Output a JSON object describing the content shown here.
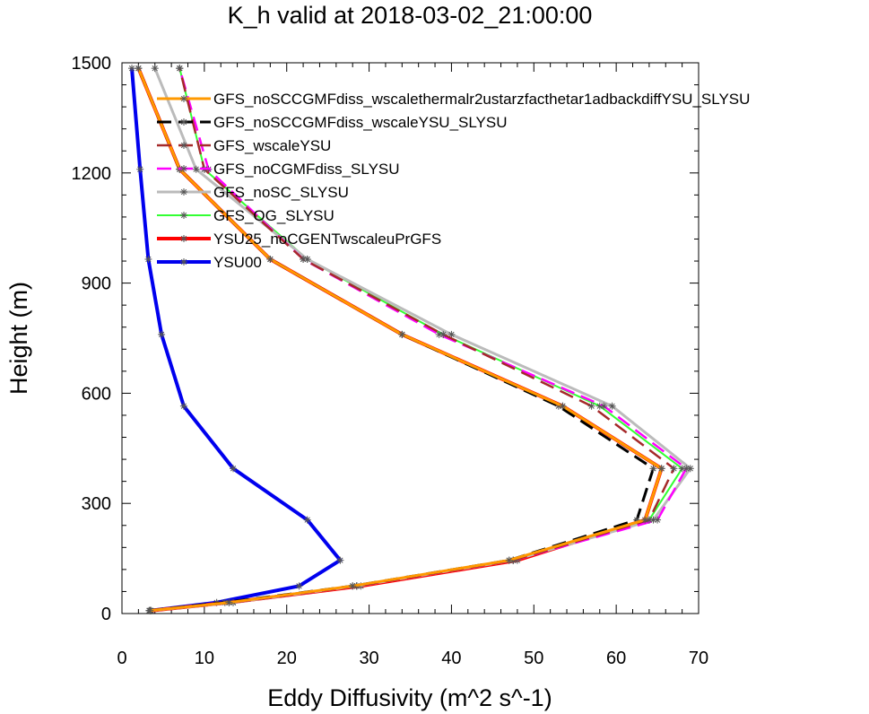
{
  "chart_data": {
    "type": "line",
    "title": "K_h valid at 2018-03-02_21:00:00",
    "xlabel": "Eddy Diffusivity (m^2 s^-1)",
    "ylabel": "Height (m)",
    "xlim": [
      0,
      70
    ],
    "ylim": [
      0,
      1500
    ],
    "xticks": [
      "0",
      "10",
      "20",
      "30",
      "40",
      "50",
      "60",
      "70"
    ],
    "yticks": [
      "0",
      "300",
      "600",
      "900",
      "1200",
      "1500"
    ],
    "heights": [
      8,
      30,
      75,
      145,
      255,
      395,
      565,
      760,
      965,
      1210,
      1485
    ],
    "legend_position": "top-right",
    "series": [
      {
        "name": "GFS_noSCCGMFdiss_wscalethermalr2ustarzfacthetar1adbackdiffYSU_SLYSU",
        "color": "#ff9900",
        "dash": "solid",
        "width": 3,
        "values": [
          3.4,
          13,
          28,
          47,
          63.5,
          65.5,
          53.5,
          34,
          18,
          7,
          2
        ]
      },
      {
        "name": "GFS_noSCCGMFdiss_wscaleYSU_SLYSU",
        "color": "#000000",
        "dash": "long",
        "width": 3,
        "values": [
          3.3,
          12.5,
          28,
          47,
          62.5,
          64.5,
          53,
          34,
          18,
          7,
          2
        ]
      },
      {
        "name": "GFS_wscaleYSU",
        "color": "#a52a2a",
        "dash": "long",
        "width": 2.5,
        "values": [
          3.5,
          13.5,
          28.5,
          47.5,
          64,
          67,
          57,
          39,
          22,
          10,
          7
        ]
      },
      {
        "name": "GFS_noCGMFdiss_SLYSU",
        "color": "#ff00ff",
        "dash": "long",
        "width": 2.5,
        "values": [
          3.5,
          13.5,
          28.5,
          47.5,
          65,
          68.5,
          58.5,
          38.5,
          22,
          10.5,
          7
        ]
      },
      {
        "name": "GFS_noSC_SLYSU",
        "color": "#bbbbbb",
        "dash": "solid",
        "width": 3,
        "values": [
          3.4,
          13.5,
          28.5,
          47.5,
          64.5,
          69,
          59.5,
          40,
          22.5,
          9,
          4
        ]
      },
      {
        "name": "GFS_OG_SLYSU",
        "color": "#33ff33",
        "dash": "solid",
        "width": 2,
        "values": [
          3.4,
          13,
          28.5,
          47.5,
          64,
          68,
          58,
          39,
          22.5,
          10,
          7
        ]
      },
      {
        "name": "YSU25_noCGENTwscaleuPrGFS",
        "color": "#ff0000",
        "dash": "solid",
        "width": 4,
        "values": [
          3.5,
          13,
          29,
          48,
          63.5,
          65.5,
          53.5,
          34,
          18,
          7,
          2
        ]
      },
      {
        "name": "YSU00",
        "color": "#0000ee",
        "dash": "solid",
        "width": 4,
        "values": [
          3.5,
          11.5,
          21.5,
          26.5,
          22.5,
          13.5,
          7.5,
          4.8,
          3.2,
          2.2,
          1.2
        ]
      }
    ]
  }
}
